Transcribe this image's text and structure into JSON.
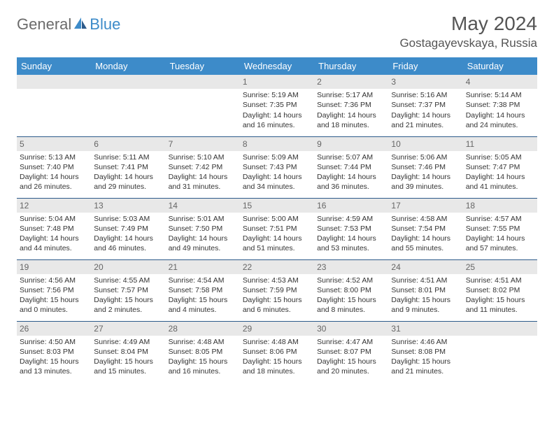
{
  "brand": {
    "text1": "General",
    "text2": "Blue"
  },
  "title": "May 2024",
  "location": "Gostagayevskaya, Russia",
  "colors": {
    "header_bg": "#3d8bc9",
    "header_text": "#ffffff",
    "row_border": "#2c5a8a",
    "daynum_bg": "#e8e8e8",
    "daynum_text": "#666666",
    "body_text": "#333333",
    "brand_gray": "#6b6b6b",
    "brand_blue": "#3d8bc9"
  },
  "weekdays": [
    "Sunday",
    "Monday",
    "Tuesday",
    "Wednesday",
    "Thursday",
    "Friday",
    "Saturday"
  ],
  "weeks": [
    [
      {
        "day": "",
        "lines": []
      },
      {
        "day": "",
        "lines": []
      },
      {
        "day": "",
        "lines": []
      },
      {
        "day": "1",
        "lines": [
          "Sunrise: 5:19 AM",
          "Sunset: 7:35 PM",
          "Daylight: 14 hours and 16 minutes."
        ]
      },
      {
        "day": "2",
        "lines": [
          "Sunrise: 5:17 AM",
          "Sunset: 7:36 PM",
          "Daylight: 14 hours and 18 minutes."
        ]
      },
      {
        "day": "3",
        "lines": [
          "Sunrise: 5:16 AM",
          "Sunset: 7:37 PM",
          "Daylight: 14 hours and 21 minutes."
        ]
      },
      {
        "day": "4",
        "lines": [
          "Sunrise: 5:14 AM",
          "Sunset: 7:38 PM",
          "Daylight: 14 hours and 24 minutes."
        ]
      }
    ],
    [
      {
        "day": "5",
        "lines": [
          "Sunrise: 5:13 AM",
          "Sunset: 7:40 PM",
          "Daylight: 14 hours and 26 minutes."
        ]
      },
      {
        "day": "6",
        "lines": [
          "Sunrise: 5:11 AM",
          "Sunset: 7:41 PM",
          "Daylight: 14 hours and 29 minutes."
        ]
      },
      {
        "day": "7",
        "lines": [
          "Sunrise: 5:10 AM",
          "Sunset: 7:42 PM",
          "Daylight: 14 hours and 31 minutes."
        ]
      },
      {
        "day": "8",
        "lines": [
          "Sunrise: 5:09 AM",
          "Sunset: 7:43 PM",
          "Daylight: 14 hours and 34 minutes."
        ]
      },
      {
        "day": "9",
        "lines": [
          "Sunrise: 5:07 AM",
          "Sunset: 7:44 PM",
          "Daylight: 14 hours and 36 minutes."
        ]
      },
      {
        "day": "10",
        "lines": [
          "Sunrise: 5:06 AM",
          "Sunset: 7:46 PM",
          "Daylight: 14 hours and 39 minutes."
        ]
      },
      {
        "day": "11",
        "lines": [
          "Sunrise: 5:05 AM",
          "Sunset: 7:47 PM",
          "Daylight: 14 hours and 41 minutes."
        ]
      }
    ],
    [
      {
        "day": "12",
        "lines": [
          "Sunrise: 5:04 AM",
          "Sunset: 7:48 PM",
          "Daylight: 14 hours and 44 minutes."
        ]
      },
      {
        "day": "13",
        "lines": [
          "Sunrise: 5:03 AM",
          "Sunset: 7:49 PM",
          "Daylight: 14 hours and 46 minutes."
        ]
      },
      {
        "day": "14",
        "lines": [
          "Sunrise: 5:01 AM",
          "Sunset: 7:50 PM",
          "Daylight: 14 hours and 49 minutes."
        ]
      },
      {
        "day": "15",
        "lines": [
          "Sunrise: 5:00 AM",
          "Sunset: 7:51 PM",
          "Daylight: 14 hours and 51 minutes."
        ]
      },
      {
        "day": "16",
        "lines": [
          "Sunrise: 4:59 AM",
          "Sunset: 7:53 PM",
          "Daylight: 14 hours and 53 minutes."
        ]
      },
      {
        "day": "17",
        "lines": [
          "Sunrise: 4:58 AM",
          "Sunset: 7:54 PM",
          "Daylight: 14 hours and 55 minutes."
        ]
      },
      {
        "day": "18",
        "lines": [
          "Sunrise: 4:57 AM",
          "Sunset: 7:55 PM",
          "Daylight: 14 hours and 57 minutes."
        ]
      }
    ],
    [
      {
        "day": "19",
        "lines": [
          "Sunrise: 4:56 AM",
          "Sunset: 7:56 PM",
          "Daylight: 15 hours and 0 minutes."
        ]
      },
      {
        "day": "20",
        "lines": [
          "Sunrise: 4:55 AM",
          "Sunset: 7:57 PM",
          "Daylight: 15 hours and 2 minutes."
        ]
      },
      {
        "day": "21",
        "lines": [
          "Sunrise: 4:54 AM",
          "Sunset: 7:58 PM",
          "Daylight: 15 hours and 4 minutes."
        ]
      },
      {
        "day": "22",
        "lines": [
          "Sunrise: 4:53 AM",
          "Sunset: 7:59 PM",
          "Daylight: 15 hours and 6 minutes."
        ]
      },
      {
        "day": "23",
        "lines": [
          "Sunrise: 4:52 AM",
          "Sunset: 8:00 PM",
          "Daylight: 15 hours and 8 minutes."
        ]
      },
      {
        "day": "24",
        "lines": [
          "Sunrise: 4:51 AM",
          "Sunset: 8:01 PM",
          "Daylight: 15 hours and 9 minutes."
        ]
      },
      {
        "day": "25",
        "lines": [
          "Sunrise: 4:51 AM",
          "Sunset: 8:02 PM",
          "Daylight: 15 hours and 11 minutes."
        ]
      }
    ],
    [
      {
        "day": "26",
        "lines": [
          "Sunrise: 4:50 AM",
          "Sunset: 8:03 PM",
          "Daylight: 15 hours and 13 minutes."
        ]
      },
      {
        "day": "27",
        "lines": [
          "Sunrise: 4:49 AM",
          "Sunset: 8:04 PM",
          "Daylight: 15 hours and 15 minutes."
        ]
      },
      {
        "day": "28",
        "lines": [
          "Sunrise: 4:48 AM",
          "Sunset: 8:05 PM",
          "Daylight: 15 hours and 16 minutes."
        ]
      },
      {
        "day": "29",
        "lines": [
          "Sunrise: 4:48 AM",
          "Sunset: 8:06 PM",
          "Daylight: 15 hours and 18 minutes."
        ]
      },
      {
        "day": "30",
        "lines": [
          "Sunrise: 4:47 AM",
          "Sunset: 8:07 PM",
          "Daylight: 15 hours and 20 minutes."
        ]
      },
      {
        "day": "31",
        "lines": [
          "Sunrise: 4:46 AM",
          "Sunset: 8:08 PM",
          "Daylight: 15 hours and 21 minutes."
        ]
      },
      {
        "day": "",
        "lines": []
      }
    ]
  ]
}
